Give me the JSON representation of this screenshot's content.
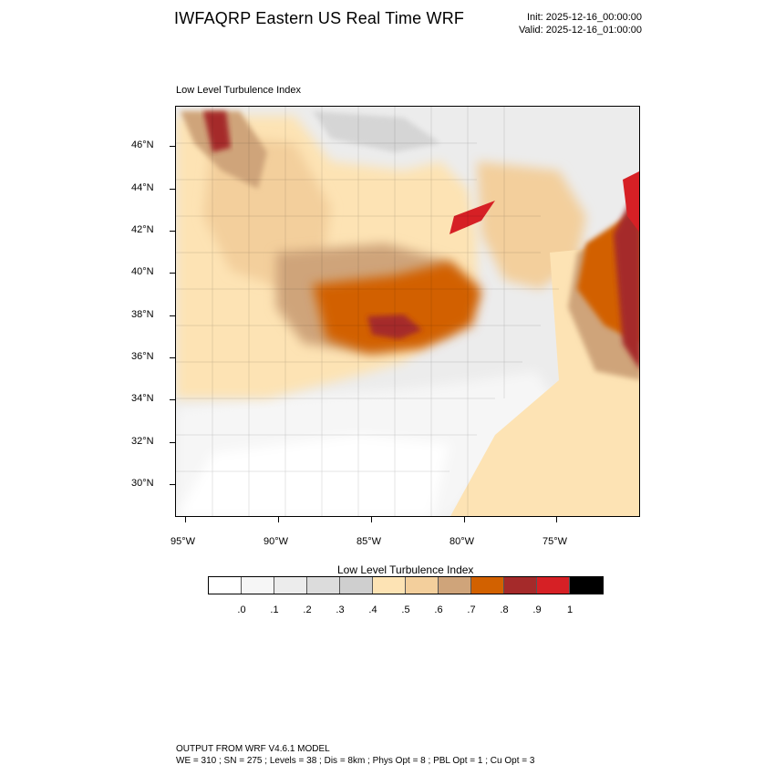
{
  "header": {
    "title": "IWFAQRP Eastern US Real Time WRF",
    "init": "Init: 2025-12-16_00:00:00",
    "valid": "Valid: 2025-12-16_01:00:00"
  },
  "map": {
    "subtitle": "Low Level Turbulence Index",
    "lat_labels": [
      "46°N",
      "44°N",
      "42°N",
      "40°N",
      "38°N",
      "36°N",
      "34°N",
      "32°N",
      "30°N"
    ],
    "lon_labels": [
      "95°W",
      "90°W",
      "85°W",
      "80°W",
      "75°W"
    ]
  },
  "colorbar": {
    "title": "Low Level Turbulence Index",
    "colors": [
      "#ffffff",
      "#f6f6f6",
      "#ececec",
      "#dcdcdc",
      "#cfcfcf",
      "#fde3b4",
      "#f3cf9c",
      "#cfa47a",
      "#d26100",
      "#a52a2a",
      "#d62025",
      "#000000"
    ],
    "labels": [
      ".0",
      ".1",
      ".2",
      ".3",
      ".4",
      ".5",
      ".6",
      ".7",
      ".8",
      ".9",
      "1"
    ]
  },
  "footer": {
    "line1": "OUTPUT FROM WRF V4.6.1 MODEL",
    "line2": "WE = 310 ; SN = 275 ; Levels = 38 ; Dis = 8km ; Phys Opt = 8 ; PBL Opt = 1 ; Cu Opt = 3"
  }
}
